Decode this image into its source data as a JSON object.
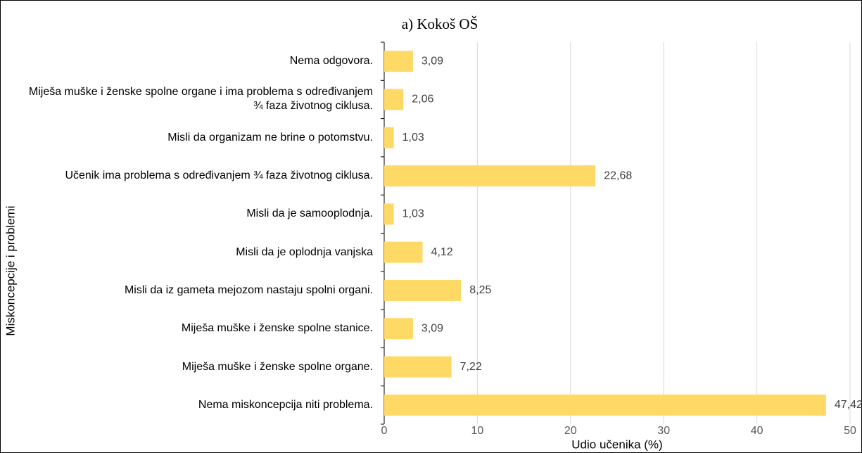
{
  "chart_data": {
    "type": "bar",
    "orientation": "horizontal",
    "title": "a) Kokoš OŠ",
    "xlabel": "Udio učenika (%)",
    "ylabel": "Miskoncepcije i problemi",
    "categories": [
      "Nema odgovora.",
      "Miješa muške i ženske spolne organe i ima problema s određivanjem ¾ faza životnog ciklusa.",
      "Misli da organizam ne brine o potomstvu.",
      "Učenik ima problema s određivanjem ¾ faza životnog ciklusa.",
      "Misli da je samooplodnja.",
      "Misli da je oplodnja vanjska",
      "Misli da iz gameta mejozom nastaju spolni organi.",
      "Miješa muške i ženske spolne stanice.",
      "Miješa muške i ženske spolne organe.",
      "Nema miskoncepcija niti problema."
    ],
    "values": [
      3.09,
      2.06,
      1.03,
      22.68,
      1.03,
      4.12,
      8.25,
      3.09,
      7.22,
      47.42
    ],
    "value_labels": [
      "3,09",
      "2,06",
      "1,03",
      "22,68",
      "1,03",
      "4,12",
      "8,25",
      "3,09",
      "7,22",
      "47,42"
    ],
    "color": "#ffd966",
    "xlim": [
      0,
      50
    ],
    "xticks": [
      0,
      10,
      20,
      30,
      40,
      50
    ],
    "grid": true
  }
}
